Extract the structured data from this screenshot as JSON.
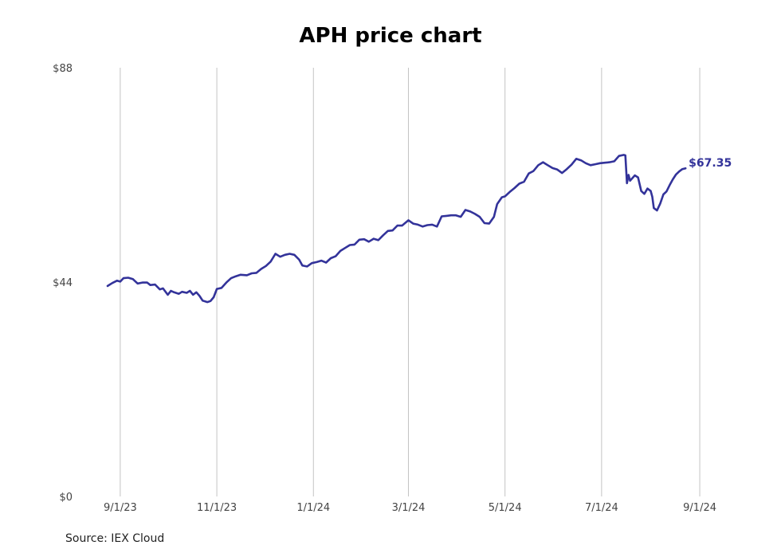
{
  "chart_data": {
    "type": "line",
    "title": "APH price chart",
    "xlabel": "",
    "ylabel": "",
    "source": "Source: IEX Cloud",
    "last_label": "$67.35",
    "colors": {
      "line": "#33339a",
      "grid": "#c4c4c4",
      "tick_text": "#444444"
    },
    "grid": {
      "vertical": true,
      "horizontal": false
    },
    "ylim": [
      0,
      88
    ],
    "y_ticks": [
      {
        "value": 0,
        "label": "$0"
      },
      {
        "value": 44,
        "label": "$44"
      },
      {
        "value": 88,
        "label": "$88"
      }
    ],
    "xlim": [
      "2023-08-23",
      "2024-09-06"
    ],
    "x_ticks": [
      {
        "date": "2023-09-01",
        "label": "9/1/23"
      },
      {
        "date": "2023-11-01",
        "label": "11/1/23"
      },
      {
        "date": "2024-01-01",
        "label": "1/1/24"
      },
      {
        "date": "2024-03-01",
        "label": "3/1/24"
      },
      {
        "date": "2024-05-01",
        "label": "5/1/24"
      },
      {
        "date": "2024-07-01",
        "label": "7/1/24"
      },
      {
        "date": "2024-09-01",
        "label": "9/1/24"
      }
    ],
    "series": [
      {
        "points": [
          [
            "2023-08-24",
            43.2
          ],
          [
            "2023-08-27",
            43.8
          ],
          [
            "2023-08-30",
            44.3
          ],
          [
            "2023-09-01",
            44.1
          ],
          [
            "2023-09-03",
            44.8
          ],
          [
            "2023-09-06",
            44.9
          ],
          [
            "2023-09-09",
            44.6
          ],
          [
            "2023-09-12",
            43.7
          ],
          [
            "2023-09-15",
            43.9
          ],
          [
            "2023-09-18",
            43.9
          ],
          [
            "2023-09-20",
            43.4
          ],
          [
            "2023-09-23",
            43.5
          ],
          [
            "2023-09-26",
            42.5
          ],
          [
            "2023-09-28",
            42.7
          ],
          [
            "2023-10-01",
            41.4
          ],
          [
            "2023-10-03",
            42.2
          ],
          [
            "2023-10-05",
            41.9
          ],
          [
            "2023-10-08",
            41.6
          ],
          [
            "2023-10-10",
            42.0
          ],
          [
            "2023-10-13",
            41.8
          ],
          [
            "2023-10-15",
            42.2
          ],
          [
            "2023-10-17",
            41.4
          ],
          [
            "2023-10-19",
            41.9
          ],
          [
            "2023-10-21",
            41.2
          ],
          [
            "2023-10-23",
            40.2
          ],
          [
            "2023-10-26",
            39.9
          ],
          [
            "2023-10-28",
            40.1
          ],
          [
            "2023-10-30",
            40.9
          ],
          [
            "2023-11-01",
            42.6
          ],
          [
            "2023-11-04",
            42.8
          ],
          [
            "2023-11-07",
            43.9
          ],
          [
            "2023-11-10",
            44.8
          ],
          [
            "2023-11-13",
            45.2
          ],
          [
            "2023-11-16",
            45.5
          ],
          [
            "2023-11-20",
            45.4
          ],
          [
            "2023-11-23",
            45.8
          ],
          [
            "2023-11-26",
            45.9
          ],
          [
            "2023-11-29",
            46.7
          ],
          [
            "2023-12-02",
            47.3
          ],
          [
            "2023-12-05",
            48.2
          ],
          [
            "2023-12-08",
            49.8
          ],
          [
            "2023-12-11",
            49.2
          ],
          [
            "2023-12-14",
            49.6
          ],
          [
            "2023-12-17",
            49.8
          ],
          [
            "2023-12-20",
            49.6
          ],
          [
            "2023-12-23",
            48.6
          ],
          [
            "2023-12-25",
            47.4
          ],
          [
            "2023-12-28",
            47.2
          ],
          [
            "2023-12-31",
            47.9
          ],
          [
            "2024-01-03",
            48.1
          ],
          [
            "2024-01-06",
            48.4
          ],
          [
            "2024-01-09",
            48.0
          ],
          [
            "2024-01-12",
            48.9
          ],
          [
            "2024-01-15",
            49.3
          ],
          [
            "2024-01-18",
            50.4
          ],
          [
            "2024-01-21",
            51.0
          ],
          [
            "2024-01-24",
            51.6
          ],
          [
            "2024-01-27",
            51.7
          ],
          [
            "2024-01-30",
            52.7
          ],
          [
            "2024-02-02",
            52.8
          ],
          [
            "2024-02-05",
            52.3
          ],
          [
            "2024-02-08",
            52.9
          ],
          [
            "2024-02-11",
            52.6
          ],
          [
            "2024-02-14",
            53.6
          ],
          [
            "2024-02-17",
            54.5
          ],
          [
            "2024-02-20",
            54.6
          ],
          [
            "2024-02-23",
            55.6
          ],
          [
            "2024-02-26",
            55.6
          ],
          [
            "2024-03-01",
            56.7
          ],
          [
            "2024-03-04",
            56.0
          ],
          [
            "2024-03-07",
            55.8
          ],
          [
            "2024-03-10",
            55.4
          ],
          [
            "2024-03-13",
            55.7
          ],
          [
            "2024-03-16",
            55.8
          ],
          [
            "2024-03-19",
            55.4
          ],
          [
            "2024-03-22",
            57.5
          ],
          [
            "2024-03-25",
            57.6
          ],
          [
            "2024-03-28",
            57.7
          ],
          [
            "2024-03-31",
            57.7
          ],
          [
            "2024-04-03",
            57.4
          ],
          [
            "2024-04-06",
            58.8
          ],
          [
            "2024-04-09",
            58.5
          ],
          [
            "2024-04-12",
            58.0
          ],
          [
            "2024-04-15",
            57.4
          ],
          [
            "2024-04-18",
            56.1
          ],
          [
            "2024-04-21",
            56.0
          ],
          [
            "2024-04-24",
            57.4
          ],
          [
            "2024-04-26",
            60.0
          ],
          [
            "2024-04-29",
            61.4
          ],
          [
            "2024-05-01",
            61.6
          ],
          [
            "2024-05-04",
            62.5
          ],
          [
            "2024-05-07",
            63.3
          ],
          [
            "2024-05-10",
            64.2
          ],
          [
            "2024-05-13",
            64.6
          ],
          [
            "2024-05-16",
            66.3
          ],
          [
            "2024-05-19",
            66.8
          ],
          [
            "2024-05-22",
            68.0
          ],
          [
            "2024-05-25",
            68.6
          ],
          [
            "2024-05-28",
            68.0
          ],
          [
            "2024-05-31",
            67.4
          ],
          [
            "2024-06-03",
            67.1
          ],
          [
            "2024-06-06",
            66.4
          ],
          [
            "2024-06-09",
            67.2
          ],
          [
            "2024-06-12",
            68.1
          ],
          [
            "2024-06-15",
            69.3
          ],
          [
            "2024-06-18",
            69.0
          ],
          [
            "2024-06-21",
            68.4
          ],
          [
            "2024-06-24",
            68.0
          ],
          [
            "2024-06-27",
            68.2
          ],
          [
            "2024-06-30",
            68.4
          ],
          [
            "2024-07-03",
            68.5
          ],
          [
            "2024-07-06",
            68.6
          ],
          [
            "2024-07-09",
            68.8
          ],
          [
            "2024-07-12",
            69.9
          ],
          [
            "2024-07-15",
            70.1
          ],
          [
            "2024-07-16",
            70.0
          ],
          [
            "2024-07-17",
            64.3
          ],
          [
            "2024-07-18",
            66.0
          ],
          [
            "2024-07-19",
            64.8
          ],
          [
            "2024-07-22",
            65.9
          ],
          [
            "2024-07-24",
            65.5
          ],
          [
            "2024-07-26",
            62.7
          ],
          [
            "2024-07-28",
            62.1
          ],
          [
            "2024-07-30",
            63.2
          ],
          [
            "2024-08-01",
            62.7
          ],
          [
            "2024-08-02",
            61.5
          ],
          [
            "2024-08-03",
            59.2
          ],
          [
            "2024-08-05",
            58.7
          ],
          [
            "2024-08-07",
            60.1
          ],
          [
            "2024-08-09",
            62.0
          ],
          [
            "2024-08-11",
            62.6
          ],
          [
            "2024-08-13",
            63.9
          ],
          [
            "2024-08-15",
            65.1
          ],
          [
            "2024-08-17",
            66.1
          ],
          [
            "2024-08-19",
            66.7
          ],
          [
            "2024-08-21",
            67.2
          ],
          [
            "2024-08-23",
            67.35
          ]
        ]
      }
    ]
  }
}
